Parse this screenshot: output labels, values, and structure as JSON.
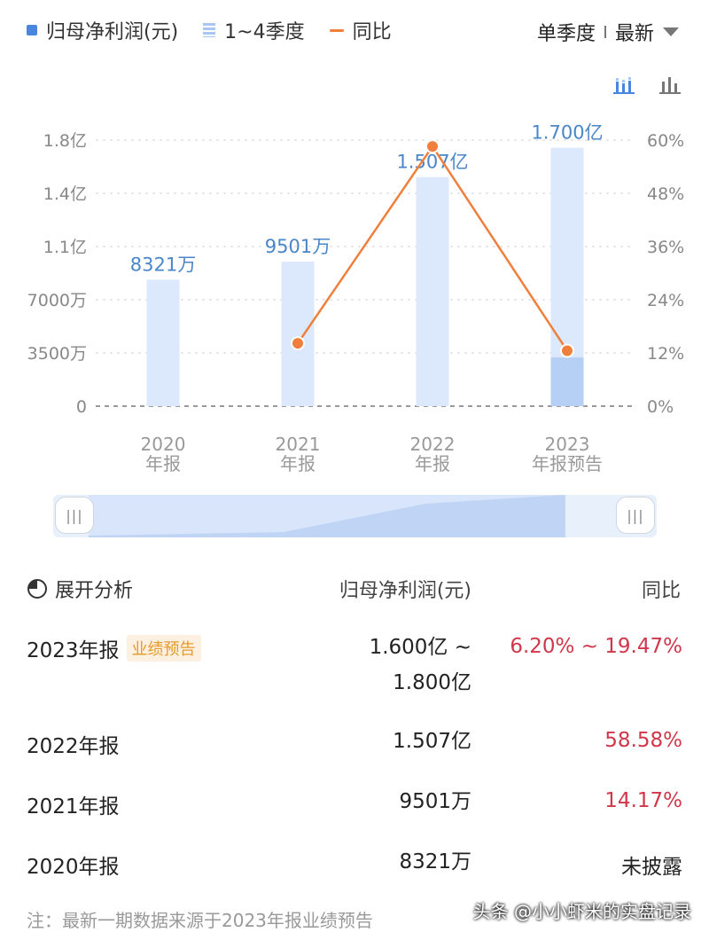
{
  "legend": {
    "items": [
      {
        "label": "归母净利润(元)",
        "color": "#4a86e0"
      },
      {
        "label": "1~4季度",
        "color": "#a9c5f2"
      },
      {
        "label": "同比",
        "color": "#f07f3c"
      }
    ]
  },
  "period_selector": {
    "mode": "单季度",
    "filter": "最新"
  },
  "view_icons": [
    "stacked-bar-chart-icon",
    "bar-chart-icon"
  ],
  "chart_data": {
    "type": "bar",
    "categories": [
      "2020\n年报",
      "2021\n年报",
      "2022\n年报",
      "2023\n年报预告"
    ],
    "series": [
      {
        "name": "归母净利润(元)",
        "type": "bar",
        "values": [
          83210000,
          95010000,
          150700000,
          170000000
        ],
        "labels": [
          "8321万",
          "9501万",
          "1.507亿",
          "1.700亿"
        ],
        "color": "#dce8fb"
      },
      {
        "name": "1~4季度",
        "type": "bar",
        "values": [
          null,
          null,
          null,
          32000000
        ],
        "color": "#b5cff5"
      },
      {
        "name": "同比",
        "type": "line",
        "axis": "right",
        "values": [
          null,
          14.17,
          58.58,
          12.5
        ],
        "color": "#f07f3c"
      }
    ],
    "y_left": {
      "min": 0,
      "max": 175000000,
      "ticks": [
        "0",
        "3500万",
        "7000万",
        "1.1亿",
        "1.4亿",
        "1.8亿"
      ]
    },
    "y_right": {
      "min": 0,
      "max": 60,
      "ticks": [
        "0%",
        "12%",
        "24%",
        "36%",
        "48%",
        "60%"
      ]
    },
    "grid": true
  },
  "slider": {
    "handle_left": "|||",
    "handle_right": "|||"
  },
  "table": {
    "header": {
      "title": "展开分析",
      "col_value": "归母净利润(元)",
      "col_yoy": "同比"
    },
    "rows": [
      {
        "period": "2023年报",
        "badge": "业绩预告",
        "value_line1": "1.600亿 ~",
        "value_line2": "1.800亿",
        "yoy": "6.20% ~ 19.47%",
        "yoy_color": "#d0374a"
      },
      {
        "period": "2022年报",
        "value": "1.507亿",
        "yoy": "58.58%",
        "yoy_color": "#d0374a"
      },
      {
        "period": "2021年报",
        "value": "9501万",
        "yoy": "14.17%",
        "yoy_color": "#d0374a"
      },
      {
        "period": "2020年报",
        "value": "8321万",
        "yoy": "未披露",
        "yoy_color": "#222222"
      }
    ]
  },
  "footnote": "注：最新一期数据来源于2023年报业绩预告",
  "watermark": "头条 @小小虾米的实盘记录"
}
